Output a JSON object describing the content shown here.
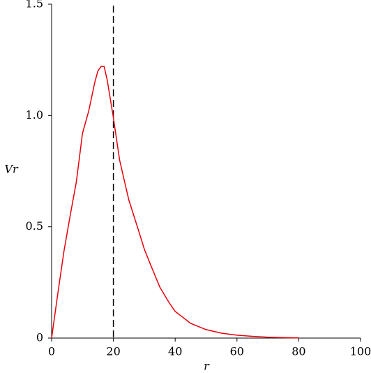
{
  "chart_data": {
    "type": "line",
    "xlabel": "r",
    "ylabel": "Vr",
    "x": [
      0,
      2,
      4,
      6,
      8,
      10,
      12,
      14,
      15,
      16,
      17,
      18,
      20,
      22,
      24,
      25,
      28,
      30,
      32,
      35,
      38,
      40,
      45,
      50,
      55,
      60,
      65,
      70,
      75,
      80
    ],
    "series": [
      {
        "color": "#e8000b",
        "values": [
          0,
          0.2,
          0.39,
          0.55,
          0.7,
          0.92,
          1.02,
          1.15,
          1.2,
          1.22,
          1.22,
          1.16,
          0.99,
          0.8,
          0.68,
          0.62,
          0.49,
          0.4,
          0.33,
          0.23,
          0.16,
          0.12,
          0.066,
          0.038,
          0.022,
          0.013,
          0.008,
          0.004,
          0.002,
          0.001
        ]
      }
    ],
    "xlim": [
      0,
      100
    ],
    "xticks": [
      0,
      20,
      40,
      60,
      80,
      100
    ],
    "ylim": [
      0,
      1.5
    ],
    "yticks": [
      0,
      0.5,
      {
        "value": 1,
        "label": "1.0"
      },
      1.5
    ],
    "vline": 20
  }
}
